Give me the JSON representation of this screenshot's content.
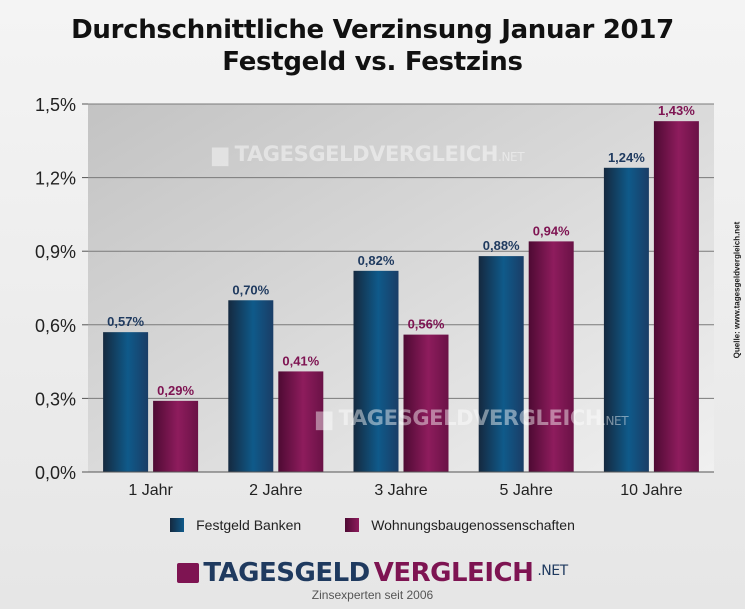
{
  "chart_data": {
    "type": "bar",
    "title_lines": [
      "Durchschnittliche Verzinsung Januar 2017",
      "Festgeld vs. Festzins"
    ],
    "categories": [
      "1 Jahr",
      "2 Jahre",
      "3 Jahre",
      "5 Jahre",
      "10 Jahre"
    ],
    "series": [
      {
        "name": "Festgeld Banken",
        "values": [
          0.57,
          0.7,
          0.82,
          0.88,
          1.24
        ],
        "labels": [
          "0,57%",
          "0,70%",
          "0,82%",
          "0,88%",
          "1,24%"
        ],
        "color": "#1f3a5f"
      },
      {
        "name": "Wohnungsbaugenossenschaften",
        "values": [
          0.29,
          0.41,
          0.56,
          0.94,
          1.43
        ],
        "labels": [
          "0,29%",
          "0,41%",
          "0,56%",
          "0,94%",
          "1,43%"
        ],
        "color": "#7e1452"
      }
    ],
    "yticks": [
      0,
      0.3,
      0.6,
      0.9,
      1.2,
      1.5
    ],
    "ytick_labels": [
      "0,0%",
      "0,3%",
      "0,6%",
      "0,9%",
      "1,2%",
      "1,5%"
    ],
    "ylim": [
      0,
      1.5
    ],
    "grid": true,
    "legend_position": "bottom-center"
  },
  "source": "Quelle: www.tagesgeldvergleich.net",
  "branding": {
    "part1": "TAGESGELD",
    "part2": "VERGLEICH",
    "suffix": ".NET",
    "tagline": "Zinsexperten seit 2006"
  },
  "colors": {
    "navy": "#1f3a5f",
    "maroon": "#7e1452"
  }
}
